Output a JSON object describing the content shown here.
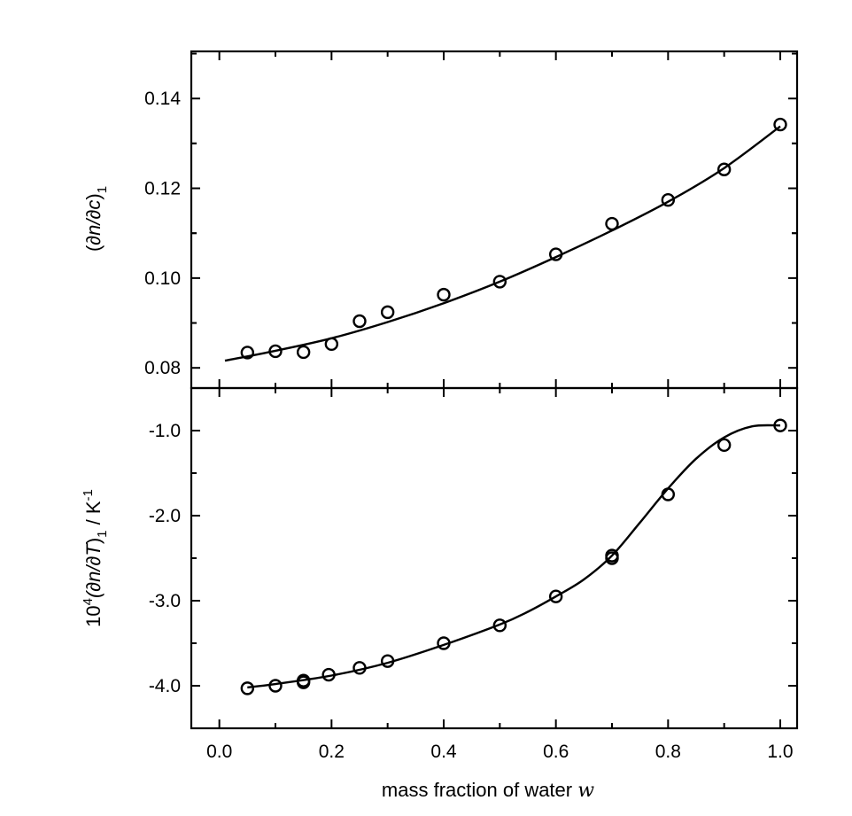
{
  "chart_data": [
    {
      "type": "scatter",
      "panel": "top",
      "ylabel": "(∂n/∂c)₁",
      "xlabel": "mass fraction of water w",
      "xlim": [
        -0.05,
        1.03
      ],
      "ylim": [
        0.0755,
        0.1505
      ],
      "x_ticks": [
        "0.0",
        "0.2",
        "0.4",
        "0.6",
        "0.8",
        "1.0"
      ],
      "y_ticks": [
        "0.08",
        "0.10",
        "0.12",
        "0.14"
      ],
      "y_tick_values": [
        0.08,
        0.1,
        0.12,
        0.14
      ],
      "grid": false,
      "points": {
        "x": [
          0.05,
          0.1,
          0.15,
          0.2,
          0.25,
          0.3,
          0.4,
          0.5,
          0.6,
          0.7,
          0.8,
          0.9,
          1.0
        ],
        "y": [
          0.0834,
          0.0837,
          0.0835,
          0.0853,
          0.0904,
          0.0924,
          0.0963,
          0.0992,
          0.1053,
          0.1121,
          0.1174,
          0.1242,
          0.1342
        ]
      },
      "fit_curve": {
        "x": [
          0.01,
          0.1,
          0.2,
          0.3,
          0.4,
          0.5,
          0.6,
          0.7,
          0.8,
          0.9,
          1.0
        ],
        "y": [
          0.0816,
          0.0838,
          0.0866,
          0.0902,
          0.0944,
          0.0992,
          0.1047,
          0.1106,
          0.117,
          0.1245,
          0.1338
        ]
      }
    },
    {
      "type": "scatter",
      "panel": "bottom",
      "ylabel": "10⁴(∂n/∂T)₁ / K⁻¹",
      "xlabel": "mass fraction of water w",
      "xlim": [
        -0.05,
        1.03
      ],
      "ylim": [
        -4.5,
        -0.5
      ],
      "x_ticks": [
        "0.0",
        "0.2",
        "0.4",
        "0.6",
        "0.8",
        "1.0"
      ],
      "y_ticks": [
        "-1.0",
        "-2.0",
        "-3.0",
        "-4.0"
      ],
      "y_tick_values": [
        -1.0,
        -2.0,
        -3.0,
        -4.0
      ],
      "grid": false,
      "points": {
        "x": [
          0.05,
          0.1,
          0.15,
          0.15,
          0.195,
          0.25,
          0.3,
          0.4,
          0.5,
          0.6,
          0.7,
          0.7,
          0.8,
          0.9,
          1.0
        ],
        "y": [
          -4.03,
          -4.0,
          -3.96,
          -3.94,
          -3.87,
          -3.79,
          -3.71,
          -3.5,
          -3.29,
          -2.95,
          -2.5,
          -2.47,
          -1.75,
          -1.17,
          -0.94
        ]
      },
      "fit_curve": {
        "x": [
          0.05,
          0.1,
          0.2,
          0.3,
          0.4,
          0.5,
          0.55,
          0.6,
          0.65,
          0.7,
          0.75,
          0.8,
          0.85,
          0.9,
          0.95,
          1.0
        ],
        "y": [
          -4.02,
          -3.98,
          -3.88,
          -3.73,
          -3.52,
          -3.28,
          -3.13,
          -2.95,
          -2.75,
          -2.47,
          -2.08,
          -1.68,
          -1.33,
          -1.08,
          -0.95,
          -0.94
        ]
      }
    }
  ],
  "labels": {
    "top_ylabel_open": "(",
    "top_ylabel_main": "∂n/∂c",
    "top_ylabel_close": ")",
    "top_ylabel_sub": "1",
    "bottom_ylabel_base": "10",
    "bottom_ylabel_exp": "4",
    "bottom_ylabel_main": "(∂n/∂T",
    "bottom_ylabel_close": ")",
    "bottom_ylabel_sub": "1",
    "bottom_ylabel_unit": " / K",
    "bottom_ylabel_unit_exp": "-1",
    "xlabel_text": "mass fraction of water  ",
    "xlabel_var": "w"
  }
}
